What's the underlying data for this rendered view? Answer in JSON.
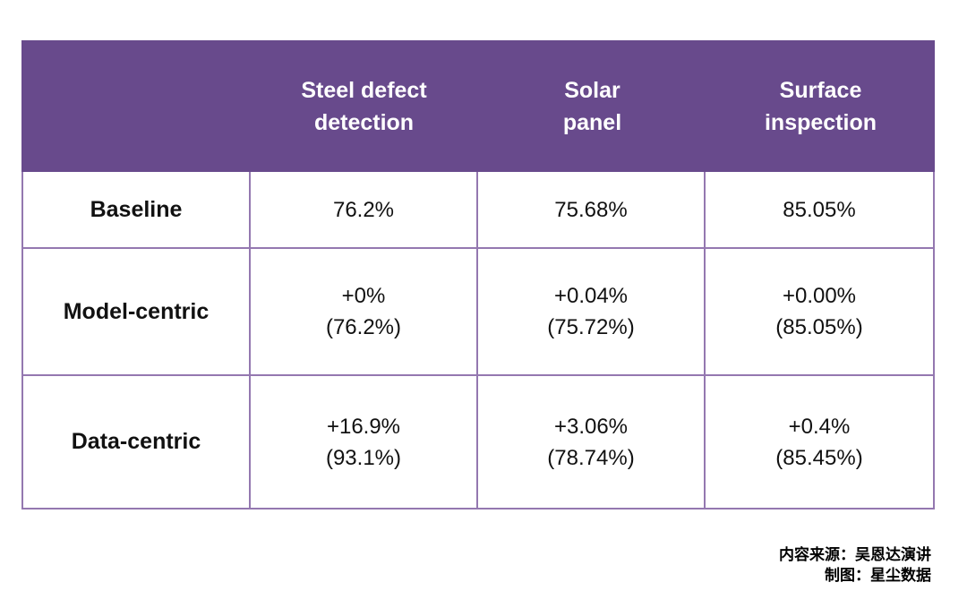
{
  "colors": {
    "header_bg": "#684a8c",
    "border": "#9478b0",
    "header_text": "#ffffff",
    "body_text": "#111111"
  },
  "table": {
    "header": {
      "corner": "",
      "columns": [
        {
          "line1": "Steel defect",
          "line2": "detection"
        },
        {
          "line1": "Solar",
          "line2": "panel"
        },
        {
          "line1": "Surface",
          "line2": "inspection"
        }
      ]
    },
    "rows": [
      {
        "label": "Baseline",
        "cells": [
          {
            "line1": "76.2%",
            "line2": ""
          },
          {
            "line1": "75.68%",
            "line2": ""
          },
          {
            "line1": "85.05%",
            "line2": ""
          }
        ]
      },
      {
        "label": "Model-centric",
        "cells": [
          {
            "line1": "+0%",
            "line2": "(76.2%)"
          },
          {
            "line1": "+0.04%",
            "line2": "(75.72%)"
          },
          {
            "line1": "+0.00%",
            "line2": "(85.05%)"
          }
        ]
      },
      {
        "label": "Data-centric",
        "cells": [
          {
            "line1": "+16.9%",
            "line2": "(93.1%)"
          },
          {
            "line1": "+3.06%",
            "line2": "(78.74%)"
          },
          {
            "line1": "+0.4%",
            "line2": "(85.45%)"
          }
        ]
      }
    ]
  },
  "footer": {
    "source": "内容来源：吴恩达演讲",
    "credit": "制图：星尘数据"
  },
  "chart_data": {
    "type": "table",
    "columns": [
      "",
      "Steel defect detection",
      "Solar panel",
      "Surface inspection"
    ],
    "rows": [
      [
        "Baseline",
        "76.2%",
        "75.68%",
        "85.05%"
      ],
      [
        "Model-centric",
        "+0% (76.2%)",
        "+0.04% (75.72%)",
        "+0.00% (85.05%)"
      ],
      [
        "Data-centric",
        "+16.9% (93.1%)",
        "+3.06% (78.74%)",
        "+0.4% (85.45%)"
      ]
    ],
    "baseline_values_pct": [
      76.2,
      75.68,
      85.05
    ],
    "model_centric_improvement_pct": [
      0,
      0.04,
      0.0
    ],
    "model_centric_result_pct": [
      76.2,
      75.72,
      85.05
    ],
    "data_centric_improvement_pct": [
      16.9,
      3.06,
      0.4
    ],
    "data_centric_result_pct": [
      93.1,
      78.74,
      85.45
    ],
    "legend_position": "none",
    "notes": [
      "内容来源：吴恩达演讲",
      "制图：星尘数据"
    ]
  }
}
